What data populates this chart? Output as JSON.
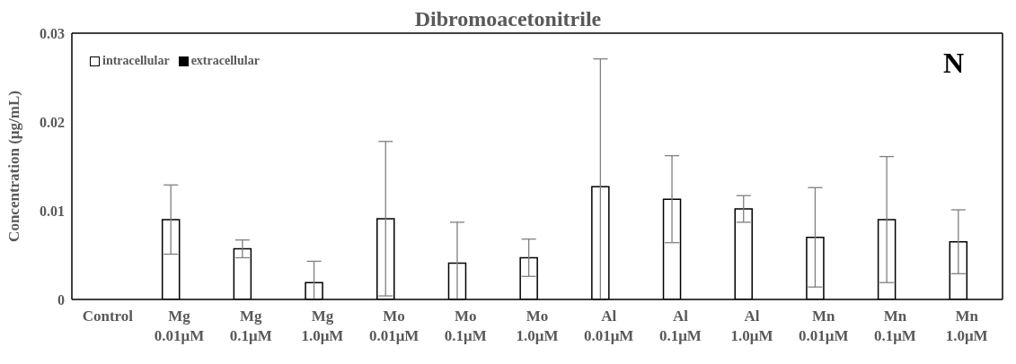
{
  "chart_data": {
    "type": "bar",
    "title": "Dibromoacetonitrile",
    "ylabel": "Concentration (μg/mL)",
    "categories": [
      "Control",
      "Mg 0.01μM",
      "Mg 0.1μM",
      "Mg 1.0μM",
      "Mo 0.01μM",
      "Mo 0.1μM",
      "Mo 1.0μM",
      "Al 0.01μM",
      "Al 0.1μM",
      "Al 1.0μM",
      "Mn 0.01μM",
      "Mn 0.1μM",
      "Mn 1.0μM"
    ],
    "series": [
      {
        "name": "intracellular",
        "color": "#ffffff",
        "values": [
          null,
          0.009,
          0.0057,
          0.0019,
          0.0091,
          0.0041,
          0.0047,
          0.0127,
          0.0113,
          0.0102,
          0.007,
          0.009,
          0.0065
        ],
        "errors": [
          null,
          0.0039,
          0.001,
          [
            0,
            0.0043
          ],
          0.0087,
          [
            0,
            0.0087
          ],
          0.0021,
          [
            0,
            0.0271
          ],
          0.0049,
          0.0015,
          0.0056,
          0.0071,
          0.0036
        ]
      },
      {
        "name": "extracellular",
        "color": "#000000",
        "values": [
          null,
          null,
          null,
          null,
          null,
          null,
          null,
          null,
          null,
          null,
          null,
          null,
          null
        ]
      }
    ],
    "ylim": [
      0,
      0.03
    ],
    "yticks": [
      0,
      0.01,
      0.02,
      0.03
    ],
    "grid": false,
    "legend": "top left",
    "annotations": [
      "N"
    ]
  }
}
